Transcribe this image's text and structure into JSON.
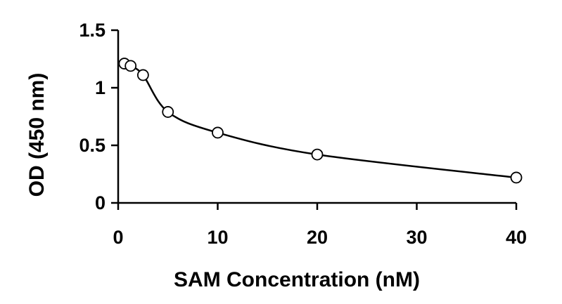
{
  "chart_data": {
    "type": "scatter",
    "title": "",
    "xlabel": "SAM Concentration (nM)",
    "ylabel": "OD (450 nm)",
    "xlim": [
      0,
      40
    ],
    "ylim": [
      0,
      1.5
    ],
    "x_ticks": [
      0,
      10,
      20,
      30,
      40
    ],
    "y_ticks": [
      0,
      0.5,
      1,
      1.5
    ],
    "x_tick_labels": [
      "0",
      "10",
      "20",
      "30",
      "40"
    ],
    "y_tick_labels": [
      "0",
      "0.5",
      "1",
      "1.5"
    ],
    "grid": false,
    "legend": "none",
    "marker_style": "open-circle",
    "line_style": "smooth-curve",
    "colors": {
      "line": "#000000",
      "marker_fill": "#ffffff",
      "marker_stroke": "#000000",
      "axis": "#000000"
    },
    "series": [
      {
        "x": [
          0.625,
          1.25,
          2.5,
          5,
          10,
          20,
          40
        ],
        "y": [
          1.21,
          1.19,
          1.11,
          0.79,
          0.61,
          0.42,
          0.22
        ]
      }
    ]
  }
}
